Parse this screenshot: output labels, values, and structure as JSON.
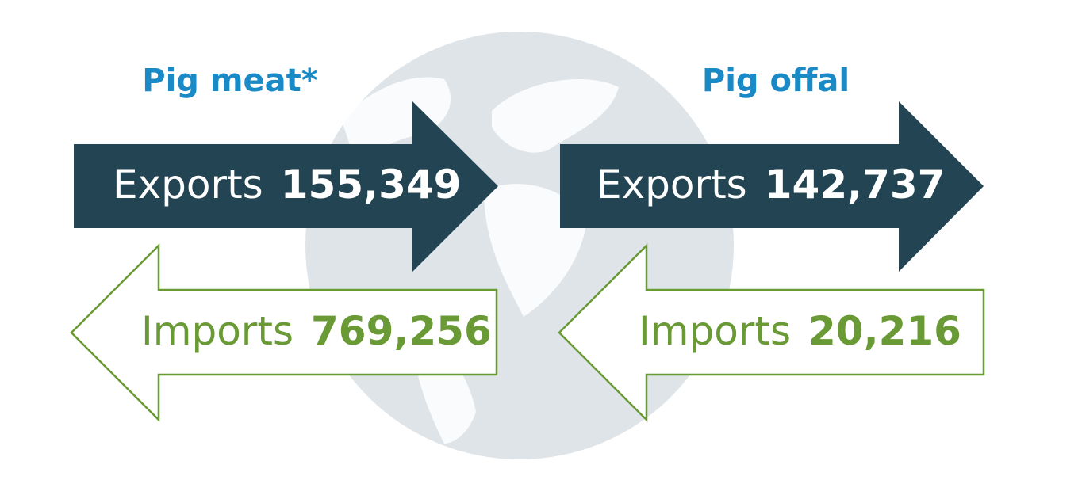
{
  "panels": [
    {
      "title": "Pig meat*",
      "exports": {
        "label": "Exports",
        "value": "155,349"
      },
      "imports": {
        "label": "Imports",
        "value": "769,256"
      }
    },
    {
      "title": "Pig offal",
      "exports": {
        "label": "Exports",
        "value": "142,737"
      },
      "imports": {
        "label": "Imports",
        "value": "20,216"
      }
    }
  ]
}
